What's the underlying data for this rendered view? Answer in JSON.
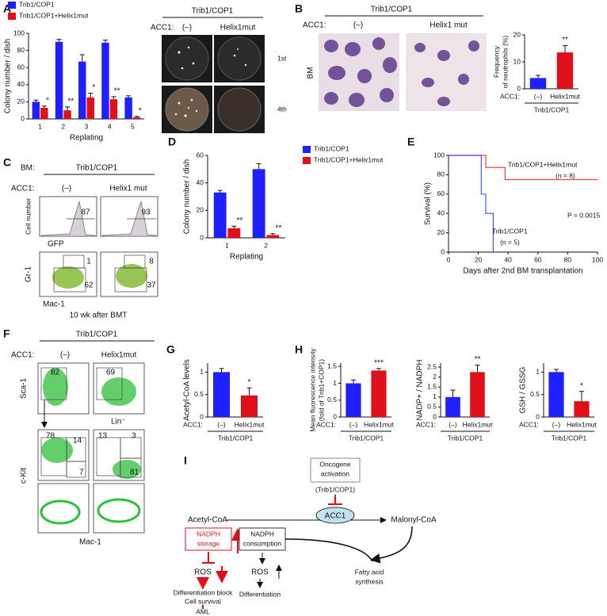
{
  "panel_labels": [
    "A",
    "B",
    "C",
    "D",
    "E",
    "F",
    "G",
    "H",
    "I"
  ],
  "chart_data": [
    {
      "type": "bar",
      "ylabel": [
        "Colony number / dish"
      ],
      "xlabel": "Replating",
      "categories": [
        "1",
        "2",
        "3",
        "4",
        "5"
      ],
      "series": [
        {
          "name": "Trib1/COP1",
          "color": "#1f1fff",
          "values": [
            20,
            90,
            67,
            89,
            25
          ],
          "errors": [
            2,
            3,
            8,
            3,
            2
          ]
        },
        {
          "name": "Trib1/COP1+Helix1mut",
          "color": "#e0101a",
          "values": [
            13,
            10,
            25,
            23,
            2
          ],
          "errors": [
            2,
            4,
            5,
            3,
            1
          ],
          "annotations": [
            "*",
            "**",
            "*",
            "**",
            "*"
          ]
        }
      ],
      "ylim": [
        0,
        100
      ],
      "yticks": [
        0,
        20,
        40,
        60,
        80,
        100
      ],
      "legend": "above"
    },
    {
      "type": "bar",
      "ylabel": [
        "Frequency",
        "of neutrophils (%)"
      ],
      "categories": [
        "(–)",
        "Helix1mut"
      ],
      "values": [
        4,
        13.5
      ],
      "errors": [
        1,
        2.5
      ],
      "colors": [
        "#1f1fff",
        "#e0101a"
      ],
      "annotations": [
        null,
        "**"
      ],
      "group_prefix": "ACC1:",
      "group_label": "Trib1/COP1",
      "ylim": [
        0,
        20
      ],
      "yticks": [
        0,
        10,
        20
      ]
    },
    {
      "type": "bar",
      "ylabel": [
        "Colony number / dish"
      ],
      "xlabel": "Replating",
      "categories": [
        "1",
        "2"
      ],
      "series": [
        {
          "name": "Trib1/COP1",
          "color": "#1f1fff",
          "values": [
            33,
            50
          ],
          "errors": [
            1.5,
            4
          ]
        },
        {
          "name": "Trib1/COP1+Helix1mut",
          "color": "#e0101a",
          "values": [
            7,
            2
          ],
          "errors": [
            1.5,
            1
          ],
          "annotations": [
            "**",
            "**"
          ]
        }
      ],
      "ylim": [
        0,
        60
      ],
      "yticks": [
        0,
        20,
        40,
        60
      ],
      "legend": "right"
    },
    {
      "type": "line",
      "ylabel": [
        "Survival (%)"
      ],
      "xlabel": "Days after 2nd BM transplantation",
      "series": [
        {
          "name": "Trib1/COP1+Helix1mut",
          "color": "#ff3b3b",
          "x": [
            0,
            25,
            25,
            38,
            38,
            100
          ],
          "values": [
            100,
            100,
            87.5,
            87.5,
            75,
            75
          ]
        },
        {
          "name": "Trib1/COP1",
          "color": "#3d5cff",
          "x": [
            0,
            22,
            22,
            25,
            25,
            30,
            30
          ],
          "values": [
            100,
            100,
            60,
            60,
            40,
            40,
            0
          ]
        }
      ],
      "annotations": [
        "Trib1/COP1+Helix1mut",
        "(n = 8)",
        "P = 0.0015",
        "Trib1/COP1",
        "(n = 5)"
      ],
      "xlim": [
        0,
        100
      ],
      "xticks": [
        0,
        20,
        40,
        60,
        80,
        100
      ],
      "ylim": [
        0,
        100
      ],
      "yticks": [
        0,
        20,
        40,
        60,
        80,
        100
      ]
    },
    {
      "type": "bar",
      "ylabel": [
        "Acetyl-CoA levels"
      ],
      "categories": [
        "(–)",
        "Helix1mut"
      ],
      "values": [
        1,
        0.48
      ],
      "errors": [
        0.08,
        0.17
      ],
      "colors": [
        "#1f1fff",
        "#e0101a"
      ],
      "annotations": [
        null,
        "*"
      ],
      "group_prefix": "ACC1:",
      "group_label": "Trib1/COP1",
      "ylim": [
        0,
        1.2
      ],
      "yticks": [
        0,
        0.5,
        1
      ]
    },
    {
      "type": "bar",
      "ylabel": [
        "Mean fluorescence intensity",
        "(fold of Trib1+COP1)"
      ],
      "categories": [
        "(–)",
        "Helix1mut"
      ],
      "values": [
        1,
        1.38
      ],
      "errors": [
        0.1,
        0.06
      ],
      "colors": [
        "#1f1fff",
        "#e0101a"
      ],
      "annotations": [
        null,
        "***"
      ],
      "group_prefix": "ACC1:",
      "group_label": "Trib1/COP1",
      "ylim": [
        0,
        1.6
      ],
      "yticks": [
        0,
        0.5,
        1,
        1.5
      ]
    },
    {
      "type": "bar",
      "ylabel": [
        "NADP+ / NADPH"
      ],
      "categories": [
        "(–)",
        "Helix1mut"
      ],
      "values": [
        1,
        2.25
      ],
      "errors": [
        0.35,
        0.35
      ],
      "colors": [
        "#1f1fff",
        "#e0101a"
      ],
      "annotations": [
        null,
        "**"
      ],
      "group_prefix": "ACC1:",
      "group_label": "Trib1/COP1",
      "ylim": [
        0,
        2.7
      ],
      "yticks": [
        0,
        0.5,
        1,
        1.5,
        2,
        2.5
      ]
    },
    {
      "type": "bar",
      "ylabel": [
        "GSH / GSSG"
      ],
      "categories": [
        "(–)",
        "Helix1mut"
      ],
      "values": [
        1,
        0.35
      ],
      "errors": [
        0.06,
        0.22
      ],
      "colors": [
        "#1f1fff",
        "#e0101a"
      ],
      "annotations": [
        null,
        "*"
      ],
      "group_prefix": "ACC1:",
      "group_label": "Trib1/COP1",
      "ylim": [
        0,
        1.2
      ],
      "yticks": [
        0,
        0.5,
        1
      ]
    }
  ],
  "panel_a_photos": {
    "title": "Trib1/COP1",
    "prefix": "ACC1:",
    "columns": [
      "(–)",
      "Helix1mut"
    ],
    "rows": [
      "1st",
      "4th"
    ]
  },
  "panel_b_images": {
    "title": "Trib1/COP1",
    "prefix": "ACC1:",
    "columns": [
      "(–)",
      "Helix1 mut"
    ],
    "row": "BM"
  },
  "panel_c": {
    "prefix": "BM:",
    "title": "Trib1/COP1",
    "group_prefix": "ACC1:",
    "columns": [
      "(–)",
      "Helix1 mut"
    ],
    "histogram_ylabel": "Cell number",
    "histogram_xlabel": "GFP",
    "histogram_gates": [
      87,
      93
    ],
    "dot_ylabel": "Gr-1",
    "dot_xlabel": "Mac-1",
    "dot_gates": [
      [
        1,
        62
      ],
      [
        8,
        37
      ]
    ],
    "caption": "10 wk after BMT"
  },
  "panel_f": {
    "title": "Trib1/COP1",
    "prefix": "ACC1:",
    "columns": [
      "(–)",
      "Helix1mut"
    ],
    "top_ylabel": "Sca-1",
    "top_xlabel": "Lin⁻",
    "top_gates": [
      82,
      69
    ],
    "mid_ylabel": "c-Kit",
    "mid_gates": [
      [
        78,
        14,
        7
      ],
      [
        13,
        3,
        81
      ]
    ],
    "bottom_xlabel": "Mac-1"
  },
  "diagram_i": {
    "trigger": [
      "Oncogene",
      "activation"
    ],
    "driver": "(Trib1/COP1)",
    "enzyme": "ACC1",
    "substrate": "Acetyl-CoA",
    "product": "Malonyl-CoA",
    "storage": [
      "NADPH",
      "storage"
    ],
    "consumption": [
      "NADPH",
      "consumption"
    ],
    "ros_left": "ROS",
    "ros_right": "ROS",
    "outcome_left": [
      "Differentiation block",
      "Cell survival"
    ],
    "final": "AML",
    "outcome_right": "Differentiation",
    "synthesis": [
      "Fatty acid",
      "synthesis"
    ]
  }
}
